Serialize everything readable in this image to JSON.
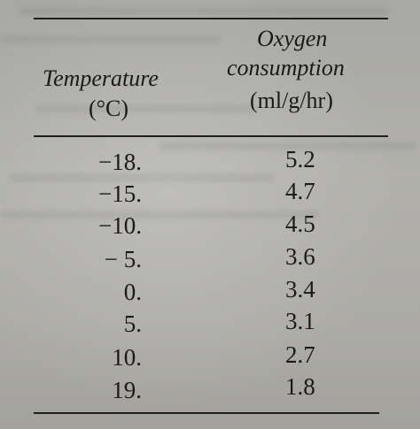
{
  "table": {
    "headers": {
      "oxygen_line1": "Oxygen",
      "oxygen_line2": "consumption",
      "oxygen_unit": "(ml/g/hr)",
      "temperature_line1": "Temperature",
      "temperature_unit": "(°C)"
    },
    "rows": [
      {
        "temperature": "−18.",
        "oxygen": "5.2"
      },
      {
        "temperature": "−15.",
        "oxygen": "4.7"
      },
      {
        "temperature": "−10.",
        "oxygen": "4.5"
      },
      {
        "temperature": "− 5.",
        "oxygen": "3.6"
      },
      {
        "temperature": "0.",
        "oxygen": "3.4"
      },
      {
        "temperature": "5.",
        "oxygen": "3.1"
      },
      {
        "temperature": "10.",
        "oxygen": "2.7"
      },
      {
        "temperature": "19.",
        "oxygen": "1.8"
      }
    ]
  }
}
